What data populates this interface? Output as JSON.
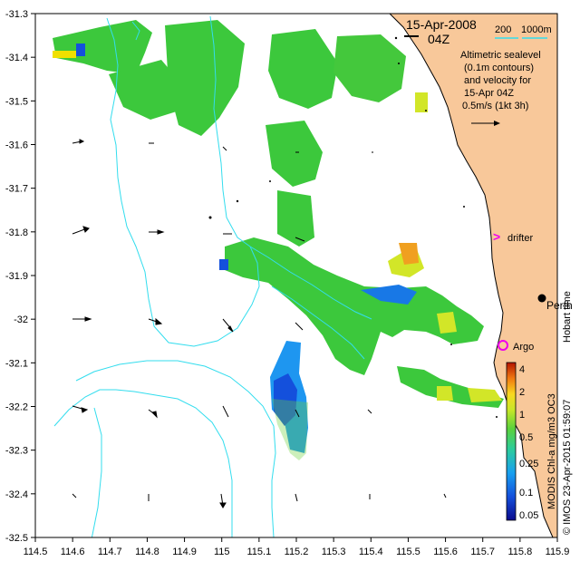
{
  "map": {
    "title_date": "15-Apr-2008",
    "title_time": "04Z",
    "scale_bar": {
      "label_200": "200",
      "label_1000m": "1000m"
    },
    "legend_text": [
      "Altimetric sealevel",
      "(0.1m contours)",
      "and velocity for",
      "15-Apr 04Z",
      "0.5m/s (1kt 3h)"
    ],
    "labels": {
      "drifter": "drifter",
      "argo": "Argo",
      "perth": "Perth",
      "hobart": "Hobart time"
    },
    "colorbar": {
      "title": "MODIS Chl-a mg/m3 OC3",
      "tick_labels": [
        "4",
        "2",
        "1",
        "0.5",
        "0.25",
        "0.1",
        "0.05"
      ]
    },
    "credit": "© IMOS 23-Apr-2015 01:59:07",
    "colors": {
      "land": "#f8c89a",
      "isobath": "#33ddee",
      "drifter_marker": "#ee00ee",
      "argo_marker": "#ee00ee",
      "chl_high": "#c81e00",
      "chl_mid": "#f0e000",
      "chl_typical": "#3cc83c",
      "chl_low": "#1464e6"
    }
  },
  "chart_data": {
    "type": "map",
    "x_axis": {
      "range": [
        114.5,
        115.9
      ],
      "ticks": [
        "114.5",
        "114.6",
        "114.7",
        "114.8",
        "114.9",
        "115",
        "115.1",
        "115.2",
        "115.3",
        "115.4",
        "115.5",
        "115.6",
        "115.7",
        "115.8",
        "115.9"
      ]
    },
    "y_axis": {
      "range": [
        -32.5,
        -31.3
      ],
      "ticks": [
        "-31.3",
        "-31.4",
        "-31.5",
        "-31.6",
        "-31.7",
        "-31.8",
        "-31.9",
        "-32",
        "-32.1",
        "-32.2",
        "-32.3",
        "-32.4",
        "-32.5"
      ]
    },
    "markers": [
      {
        "name": "drifter",
        "lon": 115.76,
        "lat": -31.81
      },
      {
        "name": "Argo",
        "lon": 115.76,
        "lat": -32.07
      },
      {
        "name": "Perth",
        "lon": 115.86,
        "lat": -31.95
      }
    ]
  }
}
